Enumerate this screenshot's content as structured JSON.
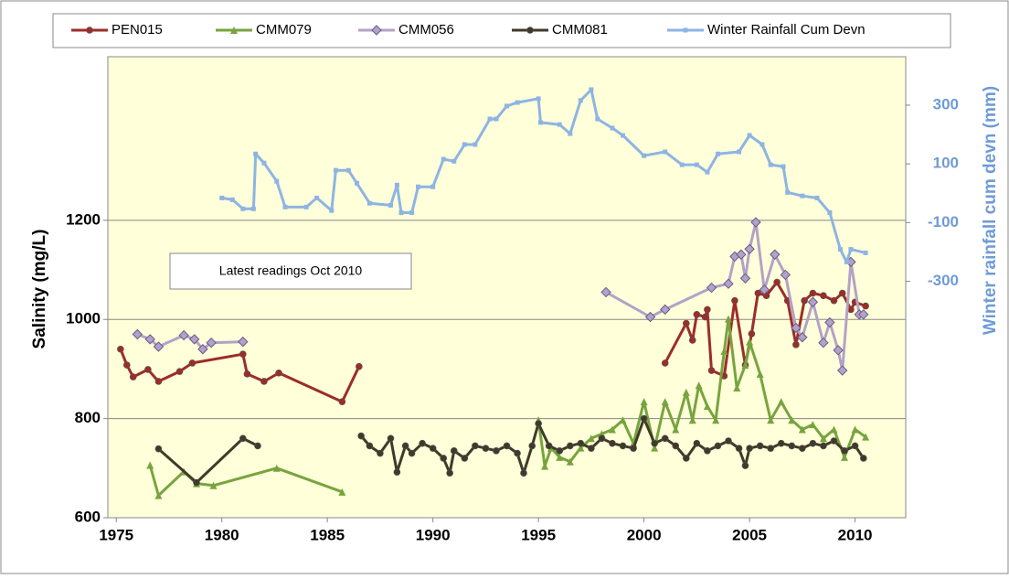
{
  "chart_data": {
    "type": "line",
    "annotation": "Latest readings Oct 2010",
    "xlabel": null,
    "ylabel": "Salinity  (mg/L)",
    "y2label": "Winter rainfall  cum devn  (mm)",
    "xlim": [
      1974.6,
      2012.4
    ],
    "xticks": [
      1975,
      1980,
      1985,
      1990,
      1995,
      2000,
      2005,
      2010
    ],
    "ylim": [
      600,
      1530
    ],
    "yticks": [
      600,
      800,
      1000,
      1200
    ],
    "y2lim": [
      -1105,
      465
    ],
    "y2ticks": [
      -300,
      -100,
      100,
      300
    ],
    "grid": true,
    "series": [
      {
        "name": "PEN015",
        "color": "#9b2d2a",
        "marker": "circle",
        "x": [
          1975.2,
          1975.5,
          1975.8,
          1976.5,
          1977,
          1978,
          1978.6,
          1981,
          1981.2,
          1982,
          1982.7,
          1985.7,
          1986.5,
          null,
          2001,
          2002,
          2002.3,
          2002.5,
          2002.9,
          2003,
          2003.2,
          2003.8,
          2004.3,
          2004.8,
          2005.1,
          2005.4,
          2005.8,
          2006.3,
          2006.8,
          2007.2,
          2007.6,
          2008,
          2008.5,
          2009,
          2009.4,
          2009.8,
          2010,
          2010.5
        ],
        "values": [
          940,
          908,
          884,
          899,
          875,
          895,
          912,
          930,
          890,
          875,
          892,
          834,
          905,
          null,
          912,
          992,
          958,
          1010,
          1005,
          1020,
          897,
          886,
          1038,
          908,
          971,
          1053,
          1048,
          1075,
          1038,
          949,
          1038,
          1053,
          1048,
          1038,
          1053,
          1020,
          1035,
          1027
        ]
      },
      {
        "name": "CMM079",
        "color": "#77a43f",
        "marker": "triangle",
        "x": [
          1976.6,
          1977,
          1978.2,
          1978.8,
          1979.6,
          1982.6,
          1985.7,
          null,
          1995,
          1995.3,
          1995.6,
          1996,
          1996.5,
          1997,
          1997.5,
          1998,
          1998.5,
          1999,
          1999.5,
          2000,
          2000.5,
          2001,
          2001.5,
          2002,
          2002.3,
          2002.6,
          2003,
          2003.4,
          2003.8,
          2004,
          2004.4,
          2004.8,
          2005,
          2005.5,
          2006,
          2006.5,
          2007,
          2007.5,
          2008,
          2008.5,
          2009,
          2009.5,
          2010,
          2010.5
        ],
        "values": [
          706,
          645,
          693,
          669,
          665,
          700,
          652,
          null,
          797,
          704,
          741,
          722,
          713,
          741,
          760,
          769,
          778,
          797,
          750,
          834,
          741,
          834,
          778,
          853,
          797,
          867,
          825,
          797,
          936,
          1001,
          862,
          908,
          955,
          890,
          797,
          834,
          797,
          778,
          788,
          760,
          778,
          722,
          778,
          763
        ]
      },
      {
        "name": "CMM056",
        "color": "#b3a2c7",
        "marker": "diamond",
        "x": [
          1976,
          1976.6,
          1977,
          1978.2,
          1978.7,
          1979.1,
          1979.5,
          1981,
          null,
          1998.2,
          2000.3,
          2001,
          2003.2,
          2004,
          2004.3,
          2004.6,
          2004.8,
          2005,
          2005.3,
          2005.7,
          2006.2,
          2006.7,
          2007.2,
          2007.5,
          2008,
          2008.5,
          2008.8,
          2009.2,
          2009.4,
          2009.8,
          2010.2,
          2010.4
        ],
        "values": [
          970,
          960,
          945,
          968,
          960,
          940,
          953,
          955,
          null,
          1055,
          1005,
          1020,
          1064,
          1072,
          1127,
          1131,
          1083,
          1142,
          1196,
          1060,
          1131,
          1090,
          983,
          964,
          1035,
          953,
          994,
          938,
          897,
          1116,
          1010,
          1010
        ]
      },
      {
        "name": "CMM081",
        "color": "#403a2a",
        "marker": "circle",
        "x": [
          1977,
          1978.8,
          1981,
          1981.7,
          null,
          1986.6,
          1987,
          1987.5,
          1988,
          1988.3,
          1988.7,
          1989,
          1989.5,
          1990,
          1990.5,
          1990.8,
          1991,
          1991.5,
          1992,
          1992.5,
          1993,
          1993.5,
          1994,
          1994.3,
          1994.7,
          1995,
          1995.5,
          1996,
          1996.5,
          1997,
          1997.5,
          1998,
          1998.5,
          1999,
          1999.5,
          2000,
          2000.5,
          2001,
          2001.5,
          2002,
          2002.5,
          2003,
          2003.5,
          2004,
          2004.5,
          2004.8,
          2005,
          2005.5,
          2006,
          2006.5,
          2007,
          2007.5,
          2008,
          2008.5,
          2009,
          2009.5,
          2010,
          2010.4
        ],
        "values": [
          739,
          671,
          760,
          745,
          null,
          765,
          745,
          730,
          760,
          692,
          745,
          730,
          750,
          740,
          720,
          690,
          735,
          720,
          745,
          740,
          735,
          745,
          730,
          690,
          745,
          790,
          745,
          735,
          745,
          750,
          740,
          760,
          750,
          745,
          740,
          800,
          750,
          760,
          745,
          720,
          750,
          735,
          745,
          755,
          740,
          705,
          740,
          745,
          740,
          750,
          745,
          740,
          750,
          745,
          755,
          735,
          745,
          720
        ]
      },
      {
        "name": "Winter Rainfall Cum Devn",
        "color": "#8eb4e3",
        "marker": "square",
        "axis": "y2",
        "x": [
          1980,
          1980.5,
          1981,
          1981.5,
          1981.6,
          1982,
          1982.6,
          1983,
          1984,
          1984.5,
          1985.2,
          1985.4,
          1986,
          1986.4,
          1987,
          1988,
          1988.3,
          1988.5,
          1989,
          1989.3,
          1990,
          1990.5,
          1991,
          1991.5,
          1992,
          1992.7,
          1993,
          1993.5,
          1994,
          1995,
          1995.1,
          1996,
          1996.5,
          1997,
          1997.5,
          1997.8,
          1998.5,
          1999,
          2000,
          2001,
          2001.8,
          2002.5,
          2003,
          2003.5,
          2004.5,
          2005,
          2005.6,
          2006,
          2006.6,
          2006.8,
          2007.5,
          2008.2,
          2008.8,
          2009.3,
          2009.6,
          2009.8,
          2010.5
        ],
        "values": [
          -16,
          -22,
          -53,
          -53,
          134,
          103,
          41,
          -47,
          -47,
          -16,
          -59,
          78,
          78,
          34,
          -34,
          -41,
          28,
          -66,
          -66,
          22,
          22,
          116,
          109,
          166,
          166,
          253,
          253,
          297,
          309,
          322,
          241,
          234,
          203,
          316,
          353,
          253,
          222,
          197,
          128,
          141,
          97,
          97,
          72,
          134,
          141,
          197,
          166,
          97,
          91,
          3,
          -9,
          -16,
          -66,
          -191,
          -234,
          -191,
          -203
        ]
      }
    ]
  }
}
